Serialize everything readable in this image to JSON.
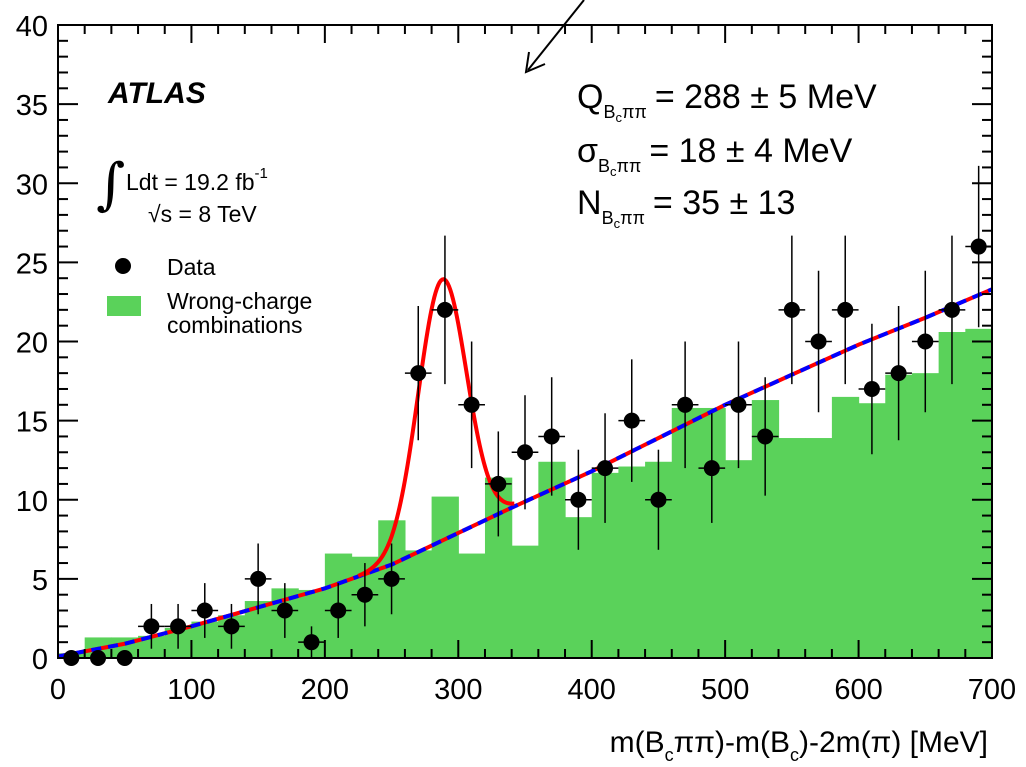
{
  "chart_data": {
    "type": "bar",
    "xlabel": {
      "a": "m(B",
      "s1": "c",
      "b": "ππ)-m(B",
      "s2": "c",
      "c": ")-2m(π) [MeV]"
    },
    "ylabel": "",
    "xlim": [
      0,
      700
    ],
    "ylim": [
      0,
      40
    ],
    "xticks": [
      "0",
      "100",
      "200",
      "300",
      "400",
      "500",
      "600",
      "700"
    ],
    "yticks": [
      "0",
      "5",
      "10",
      "15",
      "20",
      "25",
      "30",
      "35",
      "40"
    ],
    "experiment": "ATLAS",
    "luminosity": {
      "integral": "∫",
      "text": "Ldt = 19.2 fb",
      "sup": "-1"
    },
    "energy": {
      "root": "√",
      "text": "s = 8 TeV"
    },
    "legend": [
      {
        "label": "Data",
        "marker": "circle"
      },
      {
        "label": "Wrong-charge",
        "label2": "combinations",
        "marker": "box",
        "color": "#5ad25a"
      }
    ],
    "fit_results": [
      {
        "symbol": "Q",
        "sub": "B",
        "subsub": "c",
        "subrest": "ππ",
        "value": "= 288 ± 5 MeV"
      },
      {
        "symbol": "σ",
        "sub": "B",
        "subsub": "c",
        "subrest": "ππ",
        "value": "= 18 ± 4 MeV"
      },
      {
        "symbol": "N",
        "sub": "B",
        "subsub": "c",
        "subrest": "ππ",
        "value": "= 35 ± 13"
      }
    ],
    "colors": {
      "histogram": "#5ad25a",
      "signal_fit": "#ff0000",
      "background_fit": "#0000ff",
      "data": "#000000"
    },
    "histogram": {
      "name": "Wrong-charge combinations",
      "edges": [
        0,
        20,
        40,
        60,
        80,
        100,
        120,
        140,
        160,
        180,
        200,
        220,
        240,
        260,
        280,
        300,
        320,
        340,
        360,
        380,
        400,
        420,
        440,
        460,
        480,
        500,
        520,
        540,
        560,
        580,
        600,
        620,
        640,
        660,
        680,
        700
      ],
      "values": [
        0.3,
        1.3,
        1.3,
        1.4,
        1.9,
        2.3,
        2.7,
        3.6,
        4.4,
        4.3,
        6.6,
        6.4,
        8.7,
        6.8,
        10.2,
        6.6,
        11.4,
        7.1,
        12.4,
        8.9,
        11.7,
        12.1,
        12.4,
        15.8,
        15.8,
        12.5,
        16.3,
        13.9,
        13.9,
        16.5,
        16.1,
        17.9,
        18.0,
        20.6,
        20.8
      ]
    },
    "data": {
      "name": "Data",
      "x": [
        10,
        30,
        50,
        70,
        90,
        110,
        130,
        150,
        170,
        190,
        210,
        230,
        250,
        270,
        290,
        310,
        330,
        350,
        370,
        390,
        410,
        430,
        450,
        470,
        490,
        510,
        530,
        550,
        570,
        590,
        610,
        630,
        650,
        670,
        690
      ],
      "y": [
        0,
        0,
        0,
        2,
        2,
        3,
        2,
        5,
        3,
        1,
        3,
        4,
        5,
        18,
        22,
        16,
        11,
        13,
        14,
        10,
        12,
        15,
        10,
        16,
        12,
        16,
        14,
        22,
        20,
        22,
        17,
        18,
        20,
        22,
        26
      ]
    },
    "background_fit": {
      "x": [
        0,
        50,
        100,
        150,
        200,
        250,
        300,
        340,
        400,
        450,
        500,
        550,
        600,
        650,
        700
      ],
      "y": [
        0.1,
        0.9,
        2.0,
        3.2,
        4.4,
        5.9,
        7.9,
        9.5,
        11.8,
        13.9,
        16.0,
        17.9,
        19.8,
        21.5,
        23.3
      ]
    },
    "signal_fit": {
      "mean": 288,
      "sigma": 18,
      "peak_height": 16.5,
      "xmin": 225,
      "xmax": 342
    }
  }
}
